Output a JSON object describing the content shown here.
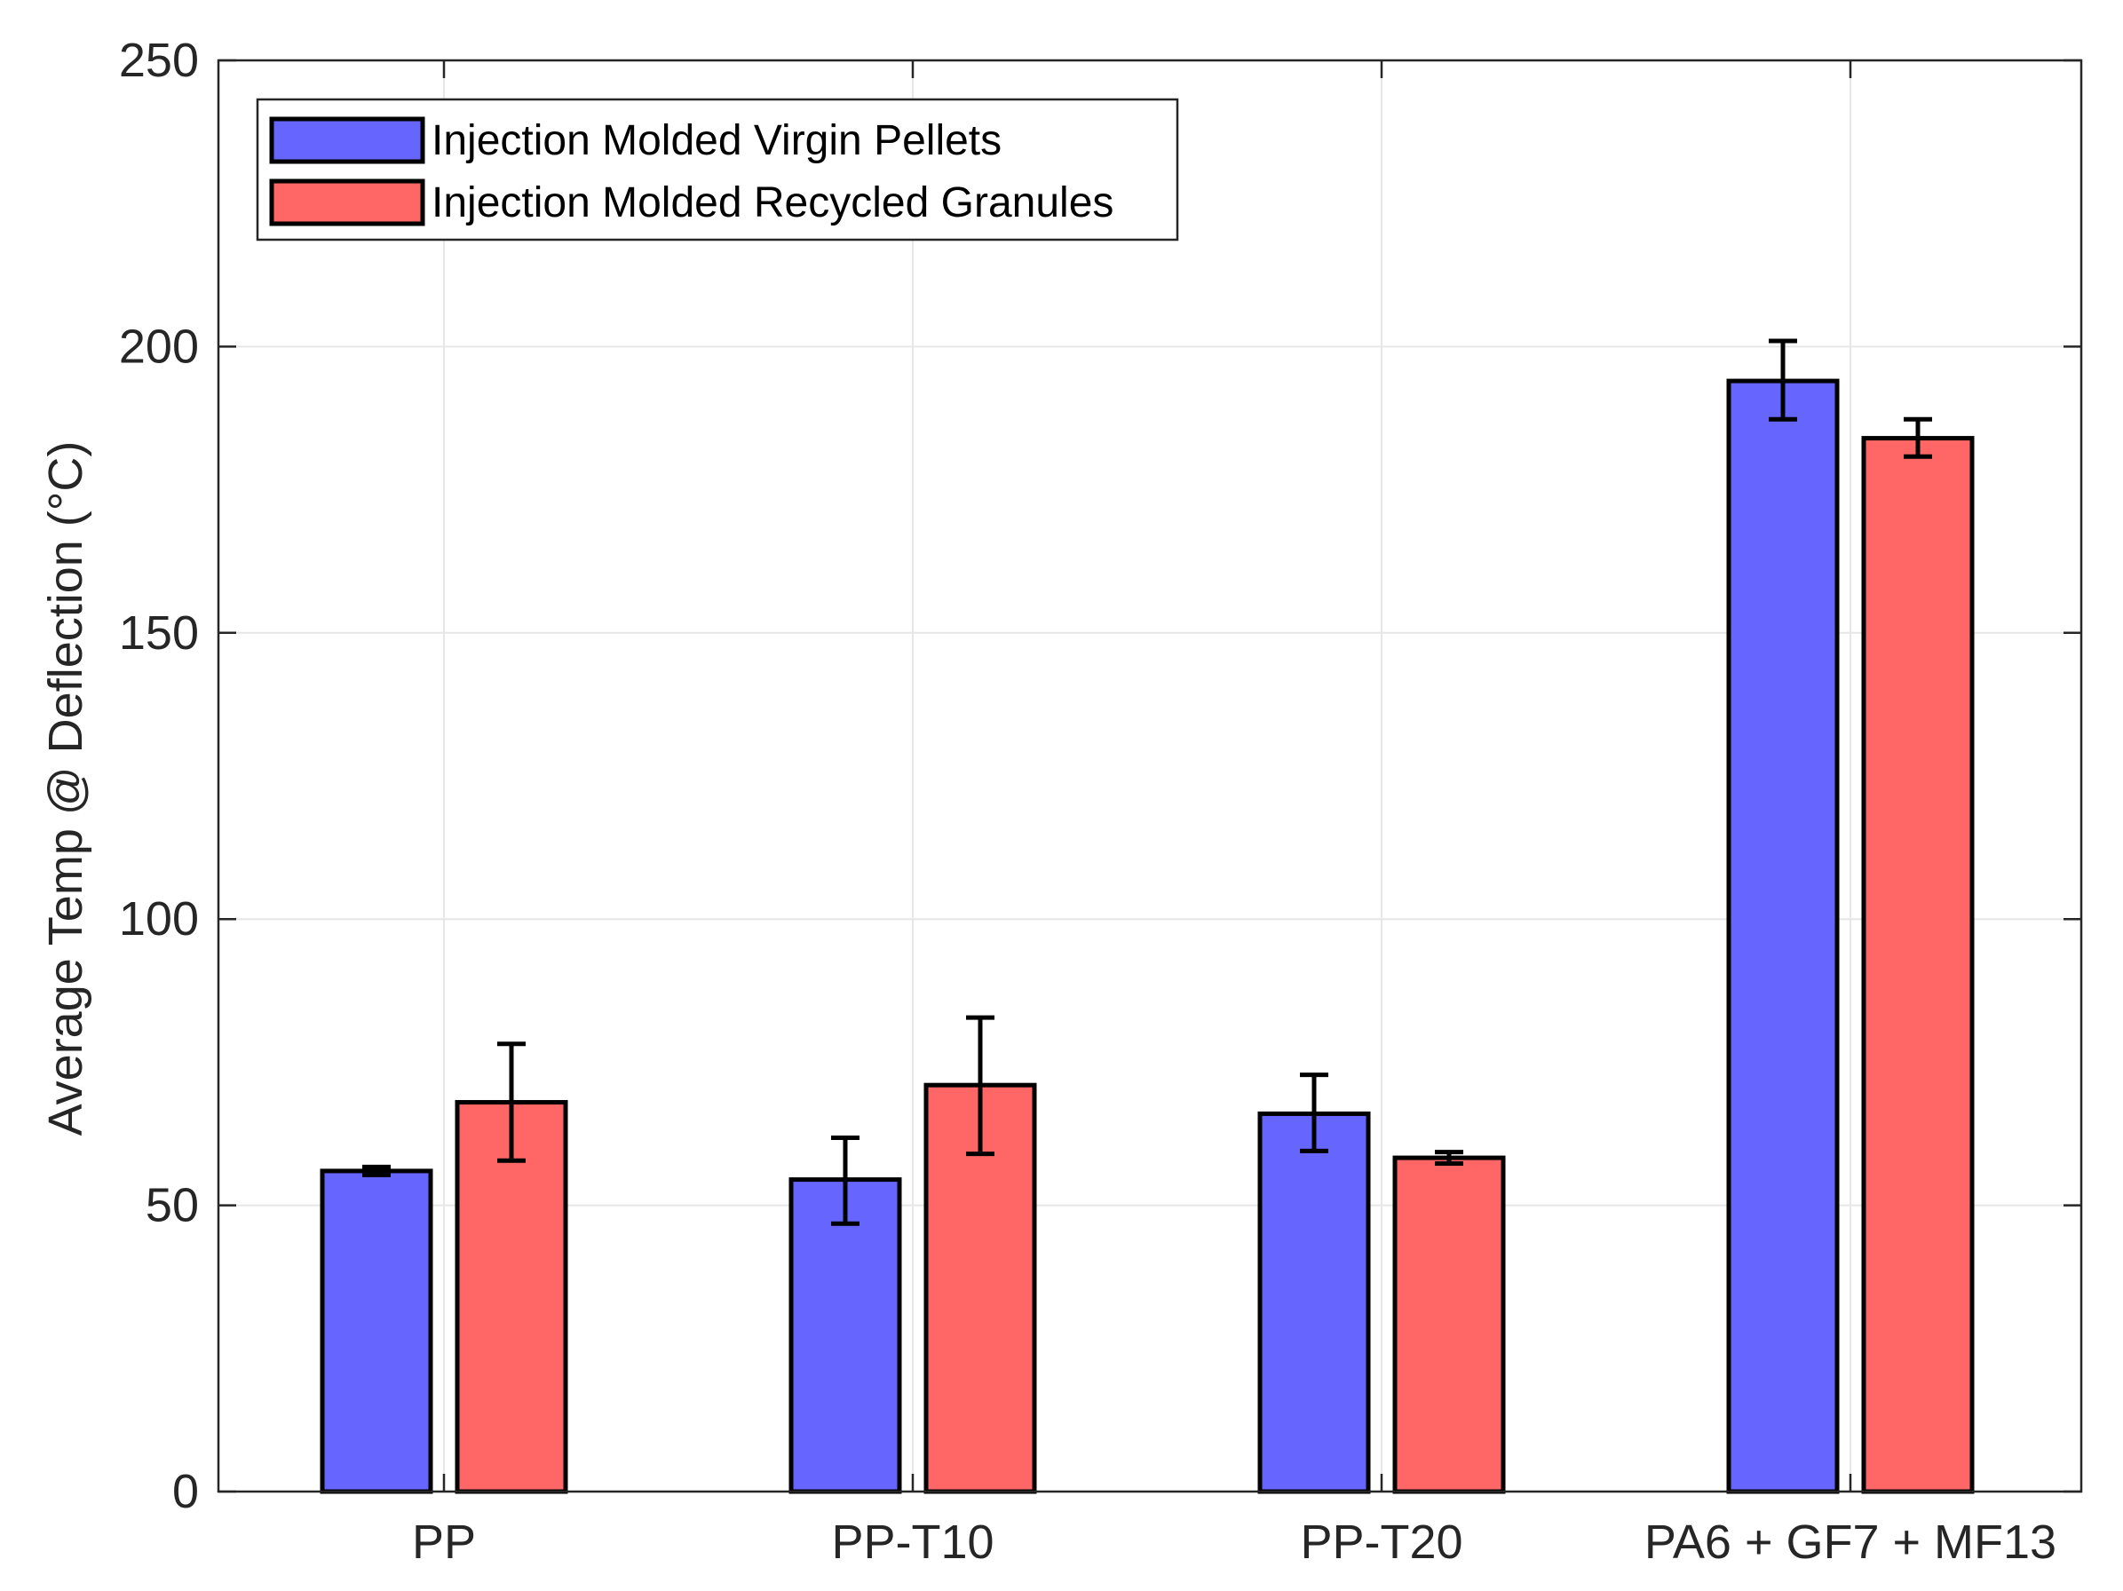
{
  "chart_data": {
    "type": "bar",
    "title": "",
    "xlabel": "",
    "ylabel": "Average Temp @ Deflection (°C)",
    "ylim": [
      0,
      250
    ],
    "yticks": [
      0,
      50,
      100,
      150,
      200,
      250
    ],
    "ytick_labels": [
      "0",
      "50",
      "100",
      "150",
      "200",
      "250"
    ],
    "grid": true,
    "legend_position": "top-left",
    "categories": [
      "PP",
      "PP-T10",
      "PP-T20",
      "PA6 + GF7 + MF13"
    ],
    "series": [
      {
        "name": "Injection Molded Virgin Pellets",
        "color": "#6666ff",
        "values": [
          56,
          54.5,
          66,
          194
        ],
        "error_low": [
          55.3,
          46.8,
          59.5,
          187.3
        ],
        "error_high": [
          56.7,
          61.8,
          72.8,
          201
        ]
      },
      {
        "name": "Injection Molded Recycled Granules",
        "color": "#ff6666",
        "values": [
          68,
          71,
          58.3,
          184
        ],
        "error_low": [
          57.8,
          59,
          57.3,
          180.8
        ],
        "error_high": [
          78.2,
          82.8,
          59.3,
          187.3
        ]
      }
    ]
  }
}
